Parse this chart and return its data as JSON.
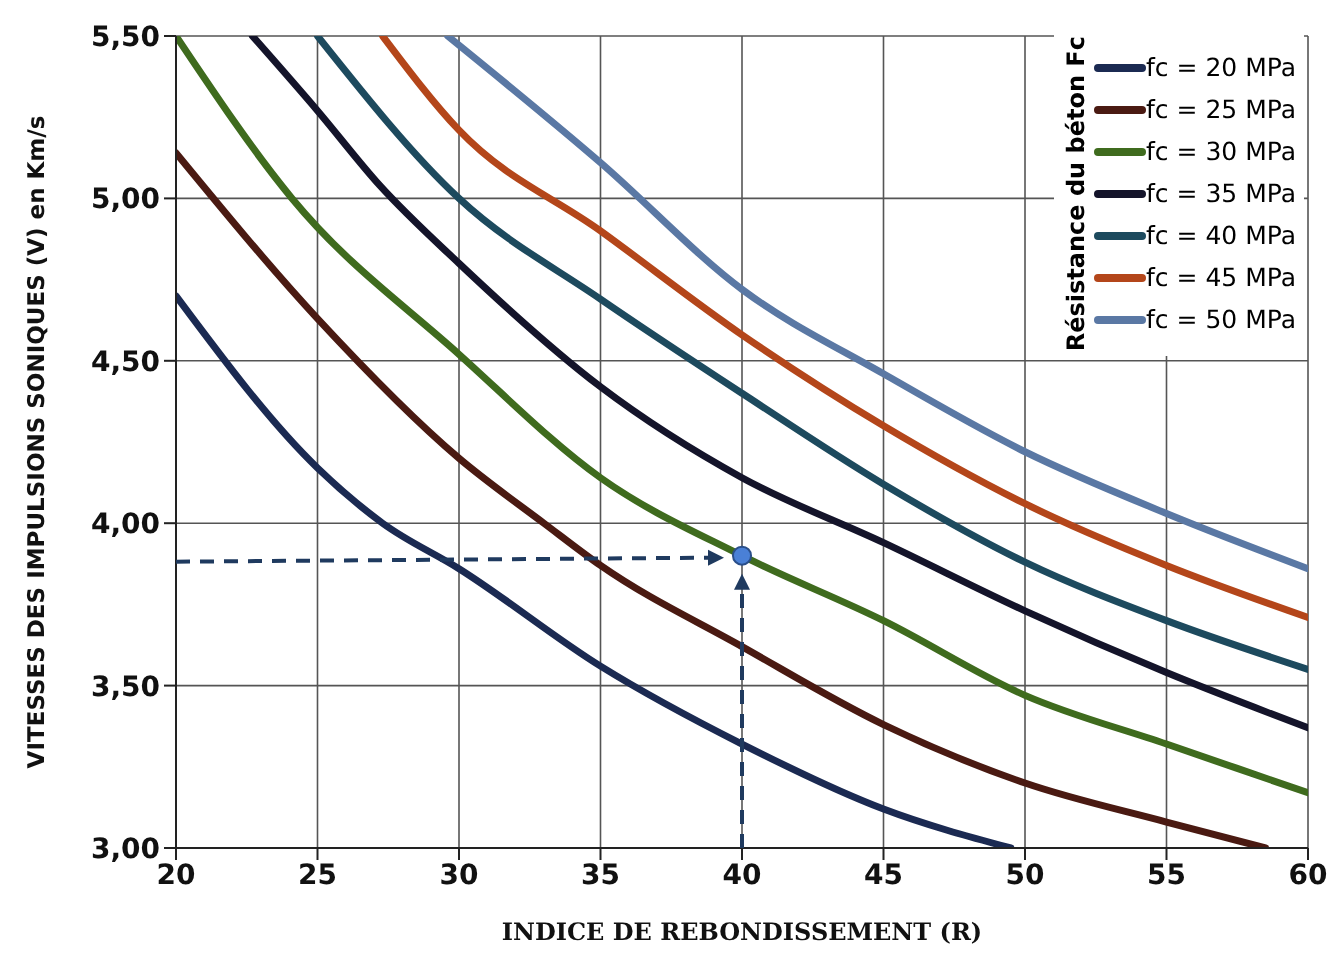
{
  "chart_data": {
    "type": "line",
    "xlabel": "INDICE DE REBONDISSEMENT (R)",
    "ylabel": "VITESSES DES IMPULSIONS SONIQUES (V) en Km/s",
    "legend_title": "Résistance du béton Fc",
    "legend": "top right",
    "grid": true,
    "marker": "none",
    "line_style": "solid",
    "xlim": [
      20,
      60
    ],
    "xticks": [
      20,
      25,
      30,
      35,
      40,
      45,
      50,
      55,
      60
    ],
    "ylim": [
      3,
      5.5
    ],
    "yticks": [
      {
        "value": 3,
        "label": "3,00"
      },
      {
        "value": 3.5,
        "label": "3,50"
      },
      {
        "value": 4,
        "label": "4,00"
      },
      {
        "value": 4.5,
        "label": "4,50"
      },
      {
        "value": 5,
        "label": "5,00"
      },
      {
        "value": 5.5,
        "label": "5,50"
      }
    ],
    "series": [
      {
        "name": "fc = 20 MPa",
        "color": "#1b2a52",
        "x": [
          20,
          25,
          27.3,
          30,
          35,
          40,
          45,
          49.5
        ],
        "values": [
          4.7,
          4.17,
          4.0,
          3.86,
          3.56,
          3.32,
          3.12,
          3.0
        ]
      },
      {
        "name": "fc = 25 MPa",
        "color": "#4a1a12",
        "x": [
          20,
          25,
          30,
          33,
          35,
          40,
          45,
          50,
          55,
          58.5
        ],
        "values": [
          5.14,
          4.63,
          4.2,
          4.0,
          3.87,
          3.62,
          3.38,
          3.2,
          3.08,
          3.0
        ]
      },
      {
        "name": "fc = 30 MPa",
        "color": "#3f6b1e",
        "x": [
          20,
          24.1,
          30,
          35,
          40,
          45,
          50,
          55,
          60
        ],
        "values": [
          5.5,
          5.0,
          4.52,
          4.14,
          3.9,
          3.7,
          3.47,
          3.32,
          3.17
        ]
      },
      {
        "name": "fc = 35 MPa",
        "color": "#14142a",
        "x": [
          22.7,
          25,
          27.2,
          30,
          35,
          40,
          45,
          50,
          55,
          60
        ],
        "values": [
          5.5,
          5.27,
          5.04,
          4.8,
          4.42,
          4.14,
          3.94,
          3.73,
          3.54,
          3.37
        ]
      },
      {
        "name": "fc = 40 MPa",
        "color": "#1d4a5e",
        "x": [
          25,
          30,
          35,
          40,
          45,
          50,
          55,
          60
        ],
        "values": [
          5.5,
          5.0,
          4.69,
          4.4,
          4.12,
          3.88,
          3.7,
          3.55
        ]
      },
      {
        "name": "fc = 45 MPa",
        "color": "#b4461a",
        "x": [
          27.3,
          30,
          35,
          40,
          45,
          50,
          55,
          60
        ],
        "values": [
          5.5,
          5.21,
          4.9,
          4.58,
          4.3,
          4.06,
          3.87,
          3.71
        ]
      },
      {
        "name": "fc = 50 MPa",
        "color": "#5a78a4",
        "x": [
          29.6,
          35,
          40,
          45,
          50,
          55,
          60
        ],
        "values": [
          5.5,
          5.11,
          4.72,
          4.46,
          4.22,
          4.03,
          3.86
        ]
      },
      {
        "type": "scatter",
        "marker": "circle",
        "color": "#4a80d6",
        "x": [
          40
        ],
        "values": [
          3.9
        ]
      }
    ]
  }
}
